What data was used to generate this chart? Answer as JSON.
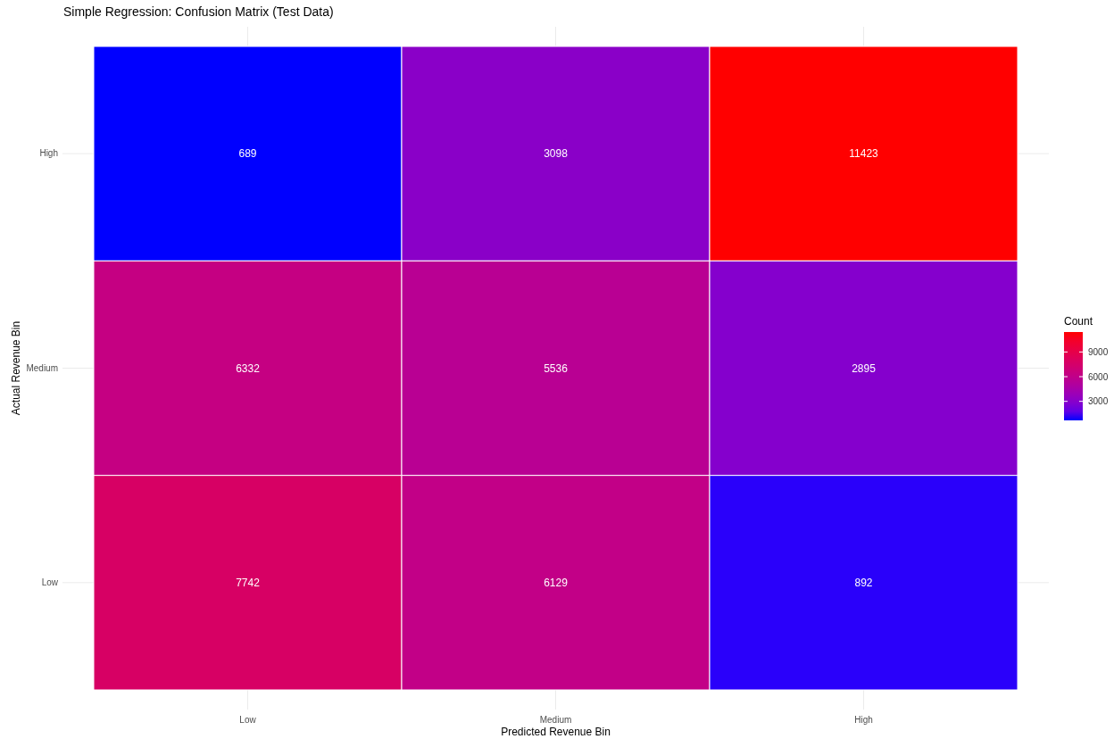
{
  "chart_data": {
    "type": "heatmap",
    "title": "Simple Regression: Confusion Matrix (Test Data)",
    "xlabel": "Predicted Revenue Bin",
    "ylabel": "Actual Revenue Bin",
    "clabel": "Count",
    "categories": [
      "Low",
      "Medium",
      "High"
    ],
    "y_categories": [
      "High",
      "Medium",
      "Low"
    ],
    "cells": [
      [
        689,
        3098,
        11423
      ],
      [
        6332,
        5536,
        2895
      ],
      [
        7742,
        6129,
        892
      ]
    ],
    "clim": [
      689,
      11423
    ],
    "cticks": [
      3000,
      6000,
      9000
    ],
    "colors": [
      "#0000ff",
      "#ff0000"
    ],
    "data_labels": true,
    "grid": true
  }
}
